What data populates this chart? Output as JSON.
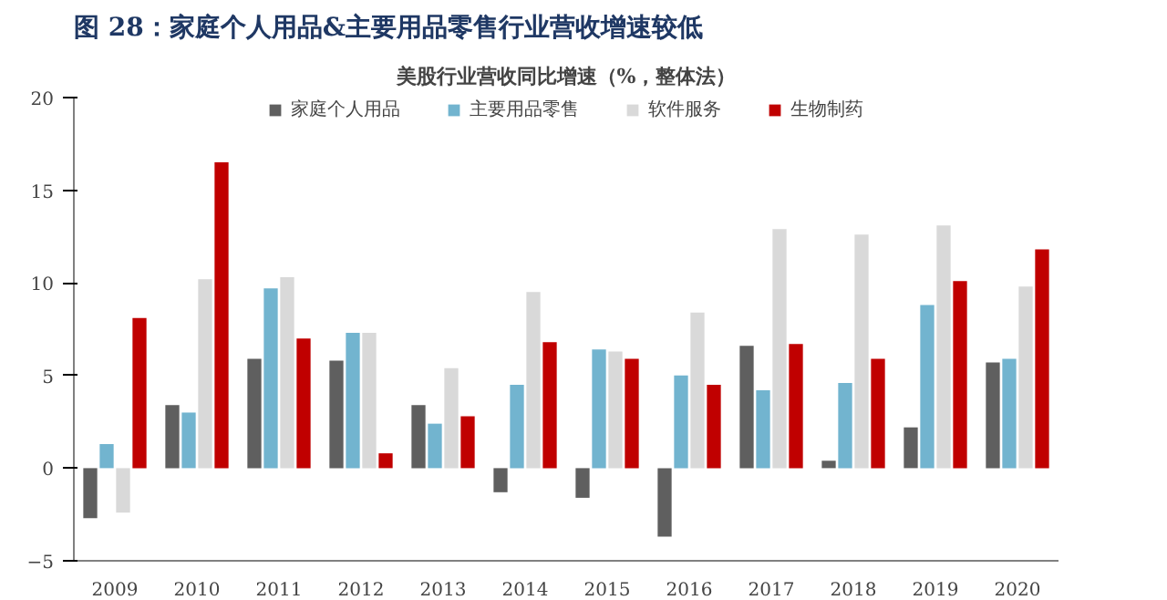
{
  "chart_data": {
    "type": "bar",
    "title": "图 28：家庭个人用品&主要用品零售行业营收增速较低",
    "subtitle": "美股行业营收同比增速（%，整体法）",
    "categories": [
      "2009",
      "2010",
      "2011",
      "2012",
      "2013",
      "2014",
      "2015",
      "2016",
      "2017",
      "2018",
      "2019",
      "2020"
    ],
    "series": [
      {
        "name": "家庭个人用品",
        "color": "#5f5f5f",
        "values": [
          -2.7,
          3.4,
          5.9,
          5.8,
          3.4,
          -1.3,
          -1.6,
          -3.7,
          6.6,
          0.4,
          2.2,
          5.7
        ]
      },
      {
        "name": "主要用品零售",
        "color": "#72b4cf",
        "values": [
          1.3,
          3.0,
          9.7,
          7.3,
          2.4,
          4.5,
          6.4,
          5.0,
          4.2,
          4.6,
          8.8,
          5.9
        ]
      },
      {
        "name": "软件服务",
        "color": "#d9d9d9",
        "values": [
          -2.4,
          10.2,
          10.3,
          7.3,
          5.4,
          9.5,
          6.3,
          8.4,
          12.9,
          12.6,
          13.1,
          9.8
        ]
      },
      {
        "name": "生物制药",
        "color": "#c00000",
        "values": [
          8.1,
          16.5,
          7.0,
          0.8,
          2.8,
          6.8,
          5.9,
          4.5,
          6.7,
          5.9,
          10.1,
          11.8
        ]
      }
    ],
    "ylim": [
      -5,
      20
    ],
    "yticks": [
      -5,
      0,
      5,
      10,
      15,
      20
    ],
    "grid": false,
    "legend": "top"
  }
}
